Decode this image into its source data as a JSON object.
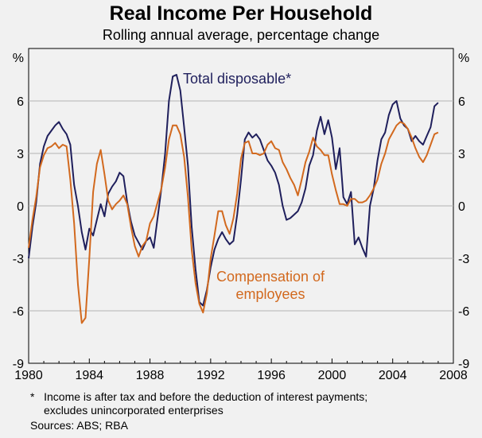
{
  "title": "Real Income Per Household",
  "subtitle": "Rolling annual average, percentage change",
  "footnote_line1": "*   Income is after tax and before the deduction of interest payments;",
  "footnote_line2": "excludes unincorporated enterprises",
  "sources": "Sources: ABS; RBA",
  "colors": {
    "total_disposable": "#1f1f5c",
    "compensation": "#d2691e",
    "grid": "#b4b4b4",
    "background": "#f1f1f1"
  },
  "chart_data": {
    "type": "line",
    "title": "Real Income Per Household",
    "subtitle": "Rolling annual average, percentage change",
    "ylabel_left": "%",
    "ylabel_right": "%",
    "ylim": [
      -9,
      9
    ],
    "xlim": [
      1980,
      2008
    ],
    "y_ticks": [
      9,
      6,
      3,
      0,
      -3,
      -6,
      -9
    ],
    "x_ticks": [
      1980,
      1984,
      1988,
      1992,
      1996,
      2000,
      2004,
      2008
    ],
    "grid": true,
    "series": [
      {
        "name": "Total disposable*",
        "color": "#1f1f5c",
        "points": [
          [
            1980.0,
            -3.0
          ],
          [
            1980.25,
            -1.2
          ],
          [
            1980.5,
            0.2
          ],
          [
            1980.75,
            2.4
          ],
          [
            1981.0,
            3.4
          ],
          [
            1981.25,
            4.0
          ],
          [
            1981.5,
            4.3
          ],
          [
            1981.75,
            4.6
          ],
          [
            1982.0,
            4.8
          ],
          [
            1982.25,
            4.4
          ],
          [
            1982.5,
            4.1
          ],
          [
            1982.75,
            3.5
          ],
          [
            1983.0,
            1.2
          ],
          [
            1983.25,
            0.0
          ],
          [
            1983.5,
            -1.5
          ],
          [
            1983.75,
            -2.5
          ],
          [
            1984.0,
            -1.3
          ],
          [
            1984.25,
            -1.7
          ],
          [
            1984.5,
            -0.8
          ],
          [
            1984.75,
            0.1
          ],
          [
            1985.0,
            -0.6
          ],
          [
            1985.25,
            0.7
          ],
          [
            1985.5,
            1.1
          ],
          [
            1985.75,
            1.4
          ],
          [
            1986.0,
            1.9
          ],
          [
            1986.25,
            1.7
          ],
          [
            1986.5,
            0.2
          ],
          [
            1986.75,
            -0.9
          ],
          [
            1987.0,
            -1.7
          ],
          [
            1987.25,
            -2.1
          ],
          [
            1987.5,
            -2.5
          ],
          [
            1987.75,
            -2.0
          ],
          [
            1988.0,
            -1.8
          ],
          [
            1988.25,
            -2.4
          ],
          [
            1988.5,
            -0.7
          ],
          [
            1988.75,
            1.0
          ],
          [
            1989.0,
            3.0
          ],
          [
            1989.25,
            6.0
          ],
          [
            1989.5,
            7.4
          ],
          [
            1989.75,
            7.5
          ],
          [
            1990.0,
            6.6
          ],
          [
            1990.25,
            4.5
          ],
          [
            1990.5,
            2.3
          ],
          [
            1990.75,
            -1.2
          ],
          [
            1991.0,
            -3.6
          ],
          [
            1991.25,
            -5.5
          ],
          [
            1991.5,
            -5.7
          ],
          [
            1991.75,
            -4.8
          ],
          [
            1992.0,
            -3.5
          ],
          [
            1992.25,
            -2.5
          ],
          [
            1992.5,
            -1.9
          ],
          [
            1992.75,
            -1.5
          ],
          [
            1993.0,
            -1.9
          ],
          [
            1993.25,
            -2.2
          ],
          [
            1993.5,
            -2.0
          ],
          [
            1993.75,
            -0.5
          ],
          [
            1994.0,
            1.5
          ],
          [
            1994.25,
            3.8
          ],
          [
            1994.5,
            4.2
          ],
          [
            1994.75,
            3.9
          ],
          [
            1995.0,
            4.1
          ],
          [
            1995.25,
            3.8
          ],
          [
            1995.5,
            3.2
          ],
          [
            1995.75,
            2.6
          ],
          [
            1996.0,
            2.3
          ],
          [
            1996.25,
            1.9
          ],
          [
            1996.5,
            1.2
          ],
          [
            1996.75,
            0.0
          ],
          [
            1997.0,
            -0.8
          ],
          [
            1997.25,
            -0.7
          ],
          [
            1997.5,
            -0.5
          ],
          [
            1997.75,
            -0.3
          ],
          [
            1998.0,
            0.2
          ],
          [
            1998.25,
            1.0
          ],
          [
            1998.5,
            2.3
          ],
          [
            1998.75,
            2.9
          ],
          [
            1999.0,
            4.3
          ],
          [
            1999.25,
            5.1
          ],
          [
            1999.5,
            4.1
          ],
          [
            1999.75,
            4.9
          ],
          [
            2000.0,
            3.9
          ],
          [
            2000.25,
            2.1
          ],
          [
            2000.5,
            3.3
          ],
          [
            2000.75,
            0.5
          ],
          [
            2001.0,
            0.1
          ],
          [
            2001.25,
            0.8
          ],
          [
            2001.5,
            -2.2
          ],
          [
            2001.75,
            -1.8
          ],
          [
            2002.0,
            -2.4
          ],
          [
            2002.25,
            -2.9
          ],
          [
            2002.5,
            0.0
          ],
          [
            2002.75,
            1.0
          ],
          [
            2003.0,
            2.6
          ],
          [
            2003.25,
            3.8
          ],
          [
            2003.5,
            4.2
          ],
          [
            2003.75,
            5.2
          ],
          [
            2004.0,
            5.8
          ],
          [
            2004.25,
            6.0
          ],
          [
            2004.5,
            5.0
          ],
          [
            2004.75,
            4.6
          ],
          [
            2005.0,
            4.4
          ],
          [
            2005.25,
            3.7
          ],
          [
            2005.5,
            4.0
          ],
          [
            2005.75,
            3.7
          ],
          [
            2006.0,
            3.5
          ],
          [
            2006.25,
            4.0
          ],
          [
            2006.5,
            4.5
          ],
          [
            2006.75,
            5.7
          ],
          [
            2007.0,
            5.9
          ]
        ]
      },
      {
        "name": "Compensation of employees",
        "color": "#d2691e",
        "points": [
          [
            1980.0,
            -2.4
          ],
          [
            1980.25,
            -0.8
          ],
          [
            1980.5,
            0.5
          ],
          [
            1980.75,
            2.2
          ],
          [
            1981.0,
            2.9
          ],
          [
            1981.25,
            3.3
          ],
          [
            1981.5,
            3.4
          ],
          [
            1981.75,
            3.6
          ],
          [
            1982.0,
            3.3
          ],
          [
            1982.25,
            3.5
          ],
          [
            1982.5,
            3.4
          ],
          [
            1982.75,
            1.5
          ],
          [
            1983.0,
            -1.0
          ],
          [
            1983.25,
            -4.5
          ],
          [
            1983.5,
            -6.7
          ],
          [
            1983.75,
            -6.4
          ],
          [
            1984.0,
            -3.0
          ],
          [
            1984.25,
            0.8
          ],
          [
            1984.5,
            2.4
          ],
          [
            1984.75,
            3.2
          ],
          [
            1985.0,
            1.8
          ],
          [
            1985.25,
            0.3
          ],
          [
            1985.5,
            -0.2
          ],
          [
            1985.75,
            0.1
          ],
          [
            1986.0,
            0.3
          ],
          [
            1986.25,
            0.6
          ],
          [
            1986.5,
            0.1
          ],
          [
            1986.75,
            -1.2
          ],
          [
            1987.0,
            -2.3
          ],
          [
            1987.25,
            -2.9
          ],
          [
            1987.5,
            -2.3
          ],
          [
            1987.75,
            -2.0
          ],
          [
            1988.0,
            -1.0
          ],
          [
            1988.25,
            -0.6
          ],
          [
            1988.5,
            0.2
          ],
          [
            1988.75,
            1.0
          ],
          [
            1989.0,
            2.2
          ],
          [
            1989.25,
            3.8
          ],
          [
            1989.5,
            4.6
          ],
          [
            1989.75,
            4.6
          ],
          [
            1990.0,
            4.1
          ],
          [
            1990.25,
            2.8
          ],
          [
            1990.5,
            0.5
          ],
          [
            1990.75,
            -2.5
          ],
          [
            1991.0,
            -4.4
          ],
          [
            1991.25,
            -5.6
          ],
          [
            1991.5,
            -6.1
          ],
          [
            1991.75,
            -5.0
          ],
          [
            1992.0,
            -3.0
          ],
          [
            1992.25,
            -1.7
          ],
          [
            1992.5,
            -0.3
          ],
          [
            1992.75,
            -0.3
          ],
          [
            1993.0,
            -1.1
          ],
          [
            1993.25,
            -1.6
          ],
          [
            1993.5,
            -0.7
          ],
          [
            1993.75,
            0.7
          ],
          [
            1994.0,
            2.7
          ],
          [
            1994.25,
            3.6
          ],
          [
            1994.5,
            3.7
          ],
          [
            1994.75,
            3.0
          ],
          [
            1995.0,
            3.0
          ],
          [
            1995.25,
            2.9
          ],
          [
            1995.5,
            3.0
          ],
          [
            1995.75,
            3.5
          ],
          [
            1996.0,
            3.7
          ],
          [
            1996.25,
            3.3
          ],
          [
            1996.5,
            3.2
          ],
          [
            1996.75,
            2.5
          ],
          [
            1997.0,
            2.1
          ],
          [
            1997.25,
            1.6
          ],
          [
            1997.5,
            1.2
          ],
          [
            1997.75,
            0.6
          ],
          [
            1998.0,
            1.5
          ],
          [
            1998.25,
            2.5
          ],
          [
            1998.5,
            3.1
          ],
          [
            1998.75,
            3.9
          ],
          [
            1999.0,
            3.4
          ],
          [
            1999.25,
            3.2
          ],
          [
            1999.5,
            2.9
          ],
          [
            1999.75,
            2.9
          ],
          [
            2000.0,
            1.8
          ],
          [
            2000.25,
            0.9
          ],
          [
            2000.5,
            0.1
          ],
          [
            2000.75,
            0.1
          ],
          [
            2001.0,
            0.0
          ],
          [
            2001.25,
            0.4
          ],
          [
            2001.5,
            0.4
          ],
          [
            2001.75,
            0.2
          ],
          [
            2002.0,
            0.2
          ],
          [
            2002.25,
            0.3
          ],
          [
            2002.5,
            0.6
          ],
          [
            2002.75,
            1.0
          ],
          [
            2003.0,
            1.5
          ],
          [
            2003.25,
            2.4
          ],
          [
            2003.5,
            3.0
          ],
          [
            2003.75,
            3.8
          ],
          [
            2004.0,
            4.2
          ],
          [
            2004.25,
            4.6
          ],
          [
            2004.5,
            4.8
          ],
          [
            2004.75,
            4.7
          ],
          [
            2005.0,
            4.4
          ],
          [
            2005.25,
            3.9
          ],
          [
            2005.5,
            3.3
          ],
          [
            2005.75,
            2.8
          ],
          [
            2006.0,
            2.5
          ],
          [
            2006.25,
            2.9
          ],
          [
            2006.5,
            3.5
          ],
          [
            2006.75,
            4.1
          ],
          [
            2007.0,
            4.2
          ]
        ]
      }
    ],
    "annotations": {
      "total_disposable_label": "Total disposable*",
      "compensation_label_line1": "Compensation of",
      "compensation_label_line2": "employees"
    }
  }
}
